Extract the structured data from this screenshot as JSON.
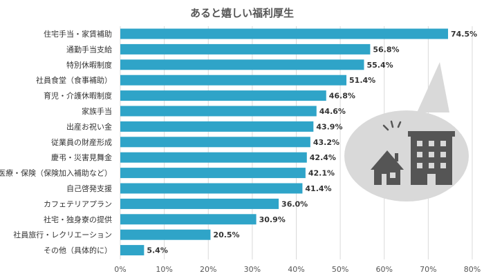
{
  "chart_data": {
    "type": "bar",
    "orientation": "horizontal",
    "title": "あると嬉しい福利厚生",
    "categories": [
      "住宅手当・家賃補助",
      "通勤手当支給",
      "特別休暇制度",
      "社員食堂（食事補助）",
      "育児・介護休暇制度",
      "家族手当",
      "出産お祝い金",
      "従業員の財産形成",
      "慶弔・災害見舞金",
      "医療・保険（保険加入補助など）",
      "自己啓発支援",
      "カフェテリアプラン",
      "社宅・独身寮の提供",
      "社員旅行・レクリエーション",
      "その他（具体的に）"
    ],
    "values": [
      74.5,
      56.8,
      55.4,
      51.4,
      46.8,
      44.6,
      43.9,
      43.2,
      42.4,
      42.1,
      41.4,
      36.0,
      30.9,
      20.5,
      5.4
    ],
    "value_labels": [
      "74.5%",
      "56.8%",
      "55.4%",
      "51.4%",
      "46.8%",
      "44.6%",
      "43.9%",
      "43.2%",
      "42.4%",
      "42.1%",
      "41.4%",
      "36.0%",
      "30.9%",
      "20.5%",
      "5.4%"
    ],
    "xlim": [
      0,
      80
    ],
    "x_ticks": [
      "0%",
      "10%",
      "20%",
      "30%",
      "40%",
      "50%",
      "60%",
      "70%",
      "80%"
    ],
    "grid": true,
    "colors": {
      "bar": "#2fa4c8",
      "grid": "#d9d9d9",
      "bubble": "#d9d9d9",
      "icon": "#555555"
    }
  },
  "illustration": {
    "icons": [
      "house-icon",
      "building-icon",
      "sparkle-icon"
    ]
  }
}
